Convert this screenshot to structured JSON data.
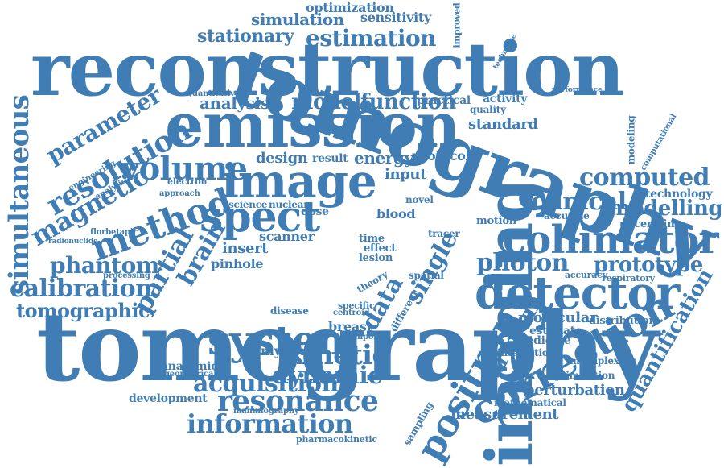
{
  "color": "#3f7db4",
  "words": [
    {
      "text": "tomography",
      "rot": 0
    },
    {
      "text": "reconstruction",
      "rot": 0
    },
    {
      "text": "emission",
      "rot": 0
    },
    {
      "text": "imaging",
      "rot": -90
    },
    {
      "text": "tomography",
      "rot": 20
    },
    {
      "text": "image",
      "rot": 0
    },
    {
      "text": "detector",
      "rot": 0
    },
    {
      "text": "collimator",
      "rot": 0
    },
    {
      "text": "correction",
      "rot": -30
    },
    {
      "text": "photon",
      "rot": 0
    },
    {
      "text": "spect",
      "rot": 0
    },
    {
      "text": "method",
      "rot": -20
    },
    {
      "text": "system",
      "rot": 0
    },
    {
      "text": "resonance",
      "rot": 0
    },
    {
      "text": "positron",
      "rot": -60
    },
    {
      "text": "volume",
      "rot": 0
    },
    {
      "text": "resolution",
      "rot": -30
    },
    {
      "text": "simultaneous",
      "rot": -90
    },
    {
      "text": "magnetic",
      "rot": -30
    },
    {
      "text": "estimation",
      "rot": 0
    },
    {
      "text": "model",
      "rot": 0
    },
    {
      "text": "function",
      "rot": 0
    },
    {
      "text": "computed",
      "rot": 0
    },
    {
      "text": "clinical",
      "rot": 0
    },
    {
      "text": "prototype",
      "rot": 0
    },
    {
      "text": "modelling",
      "rot": 0
    },
    {
      "text": "kinetic",
      "rot": 0
    },
    {
      "text": "dynamic",
      "rot": 0
    },
    {
      "text": "acquisition",
      "rot": 0
    },
    {
      "text": "information",
      "rot": 0
    },
    {
      "text": "calibration",
      "rot": 0
    },
    {
      "text": "phantom",
      "rot": 0
    },
    {
      "text": "tomographic",
      "rot": 0
    },
    {
      "text": "parameter",
      "rot": -30
    },
    {
      "text": "partial",
      "rot": -60
    },
    {
      "text": "brain",
      "rot": -60
    },
    {
      "text": "data",
      "rot": -60
    },
    {
      "text": "single",
      "rot": -60
    },
    {
      "text": "quantification",
      "rot": -60
    },
    {
      "text": "arterial",
      "rot": -60
    },
    {
      "text": "stationary",
      "rot": 0
    },
    {
      "text": "analysis",
      "rot": 0
    },
    {
      "text": "simulation",
      "rot": 0
    },
    {
      "text": "optimization",
      "rot": 0
    },
    {
      "text": "sensitivity",
      "rot": 0
    },
    {
      "text": "design",
      "rot": 0
    },
    {
      "text": "energy",
      "rot": 0
    },
    {
      "text": "result",
      "rot": 0
    },
    {
      "text": "protocol",
      "rot": 0
    },
    {
      "text": "standard",
      "rot": 0
    },
    {
      "text": "technology",
      "rot": 0
    },
    {
      "text": "accurate",
      "rot": 0
    },
    {
      "text": "uncertainty",
      "rot": 0
    },
    {
      "text": "molecular",
      "rot": 0
    },
    {
      "text": "estimate",
      "rot": 0
    },
    {
      "text": "medicine",
      "rot": 0
    },
    {
      "text": "distribution",
      "rot": 0
    },
    {
      "text": "interaction",
      "rot": 0
    },
    {
      "text": "multiplexing",
      "rot": 0
    },
    {
      "text": "optimisation",
      "rot": 0
    },
    {
      "text": "perturbation",
      "rot": 0
    },
    {
      "text": "mathematical",
      "rot": 0
    },
    {
      "text": "measurement",
      "rot": 0
    },
    {
      "text": "development",
      "rot": 0
    },
    {
      "text": "mammography",
      "rot": 0
    },
    {
      "text": "pharmacokinetic",
      "rot": 0
    },
    {
      "text": "amyloid",
      "rot": 0
    },
    {
      "text": "anatomical",
      "rot": 0
    },
    {
      "text": "geometrical",
      "rot": 0
    },
    {
      "text": "insert",
      "rot": 0
    },
    {
      "text": "pinhole",
      "rot": 0
    },
    {
      "text": "scanner",
      "rot": 0
    },
    {
      "text": "science",
      "rot": 0
    },
    {
      "text": "nuclear",
      "rot": 0
    },
    {
      "text": "input",
      "rot": 0
    },
    {
      "text": "blood",
      "rot": 0
    },
    {
      "text": "novel",
      "rot": 0
    },
    {
      "text": "time",
      "rot": 0
    },
    {
      "text": "dose",
      "rot": 0
    },
    {
      "text": "effect",
      "rot": 0
    },
    {
      "text": "lesion",
      "rot": 0
    },
    {
      "text": "spatial",
      "rot": 0
    },
    {
      "text": "breast",
      "rot": 0
    },
    {
      "text": "centroid",
      "rot": 0
    },
    {
      "text": "temporal",
      "rot": 0
    },
    {
      "text": "disease",
      "rot": 0
    },
    {
      "text": "specific",
      "rot": 0
    },
    {
      "text": "tracer",
      "rot": 0
    },
    {
      "text": "motion",
      "rot": 0
    },
    {
      "text": "activity",
      "rot": 0
    },
    {
      "text": "quality",
      "rot": 0
    },
    {
      "text": "practical",
      "rot": 0
    },
    {
      "text": "quantitative",
      "rot": 0
    },
    {
      "text": "electron",
      "rot": 0
    },
    {
      "text": "approach",
      "rot": 0
    },
    {
      "text": "processing",
      "rot": 0
    },
    {
      "text": "florbetapir",
      "rot": 0
    },
    {
      "text": "radionuclide",
      "rot": 0
    },
    {
      "text": "engineering",
      "rot": -30
    },
    {
      "text": "analytical",
      "rot": -30
    },
    {
      "text": "accuracy",
      "rot": 0
    },
    {
      "text": "respiratory",
      "rot": 0
    },
    {
      "text": "modeling",
      "rot": -90
    },
    {
      "text": "computational",
      "rot": -60
    },
    {
      "text": "sampling",
      "rot": -60
    },
    {
      "text": "improved",
      "rot": -90
    },
    {
      "text": "technique",
      "rot": -60
    },
    {
      "text": "performance",
      "rot": 0
    },
    {
      "text": "different",
      "rot": -60
    },
    {
      "text": "theory",
      "rot": -30
    }
  ]
}
